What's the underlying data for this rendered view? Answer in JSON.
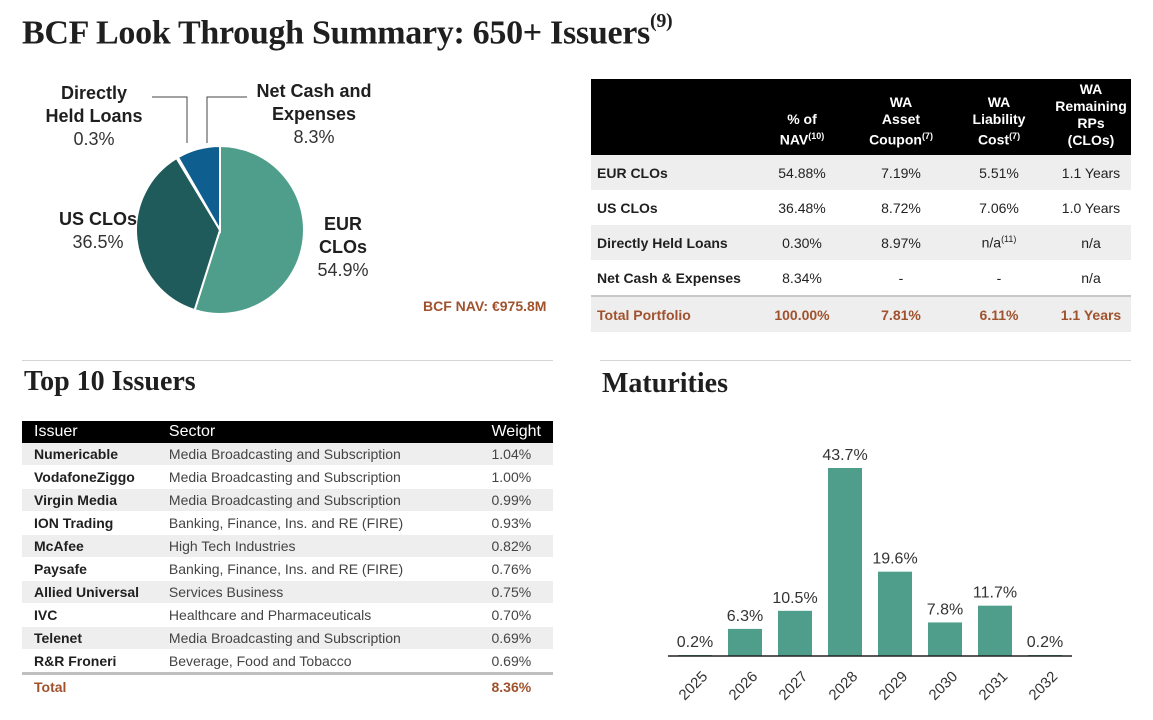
{
  "title": {
    "main": "BCF Look Through Summary: 650+ Issuers",
    "footnote": "(9)"
  },
  "nav_text": "BCF NAV: €975.8M",
  "pie": {
    "slices": [
      {
        "key": "eur",
        "name_line1": "EUR",
        "name_line2": "CLOs",
        "pct_label": "54.9%",
        "value": 54.88,
        "color": "#4f9e8b"
      },
      {
        "key": "us",
        "name_line1": "US CLOs",
        "name_line2": "",
        "pct_label": "36.5%",
        "value": 36.48,
        "color": "#1e5b5a"
      },
      {
        "key": "direct",
        "name_line1": "Directly",
        "name_line2": "Held Loans",
        "pct_label": "0.3%",
        "value": 0.3,
        "color": "#9fd0c4"
      },
      {
        "key": "cash",
        "name_line1": "Net Cash and",
        "name_line2": "Expenses",
        "pct_label": "8.3%",
        "value": 8.34,
        "color": "#0e5e8f"
      }
    ]
  },
  "summary_table": {
    "headers": [
      {
        "main": "",
        "sup": ""
      },
      {
        "main": "% of\nNAV",
        "sup": "(10)"
      },
      {
        "main": "WA\nAsset\nCoupon",
        "sup": "(7)"
      },
      {
        "main": "WA\nLiability\nCost",
        "sup": "(7)"
      },
      {
        "main": "WA\nRemaining\nRPs (CLOs)",
        "sup": ""
      }
    ],
    "rows": [
      {
        "cells": [
          "EUR CLOs",
          "54.88%",
          "7.19%",
          "5.51%",
          "1.1 Years"
        ],
        "sup": ""
      },
      {
        "cells": [
          "US CLOs",
          "36.48%",
          "8.72%",
          "7.06%",
          "1.0 Years"
        ],
        "sup": ""
      },
      {
        "cells": [
          "Directly Held Loans",
          "0.30%",
          "8.97%",
          "n/a",
          "n/a"
        ],
        "sup": "(11)"
      },
      {
        "cells": [
          "Net Cash & Expenses",
          "8.34%",
          "-",
          "-",
          "n/a"
        ],
        "sup": ""
      }
    ],
    "total": [
      "Total Portfolio",
      "100.00%",
      "7.81%",
      "6.11%",
      "1.1 Years"
    ]
  },
  "top10": {
    "title": "Top 10 Issuers",
    "headers": [
      "Issuer",
      "Sector",
      "Weight"
    ],
    "rows": [
      [
        "Numericable",
        "Media Broadcasting and Subscription",
        "1.04%"
      ],
      [
        "VodafoneZiggo",
        "Media Broadcasting and Subscription",
        "1.00%"
      ],
      [
        "Virgin Media",
        "Media Broadcasting and Subscription",
        "0.99%"
      ],
      [
        "ION Trading",
        "Banking, Finance, Ins. and RE (FIRE)",
        "0.93%"
      ],
      [
        "McAfee",
        "High Tech Industries",
        "0.82%"
      ],
      [
        "Paysafe",
        "Banking, Finance, Ins. and RE (FIRE)",
        "0.76%"
      ],
      [
        "Allied Universal",
        "Services Business",
        "0.75%"
      ],
      [
        "IVC",
        "Healthcare and Pharmaceuticals",
        "0.70%"
      ],
      [
        "Telenet",
        "Media Broadcasting and Subscription",
        "0.69%"
      ],
      [
        "R&R Froneri",
        "Beverage, Food and Tobacco",
        "0.69%"
      ]
    ],
    "total": [
      "Total",
      "",
      "8.36%"
    ]
  },
  "chart_data": {
    "type": "bar",
    "title": "Maturities",
    "categories": [
      "2025",
      "2026",
      "2027",
      "2028",
      "2029",
      "2030",
      "2031",
      "2032"
    ],
    "values": [
      0.2,
      6.3,
      10.5,
      43.7,
      19.6,
      7.8,
      11.7,
      0.2
    ],
    "data_labels": [
      "0.2%",
      "6.3%",
      "10.5%",
      "43.7%",
      "19.6%",
      "7.8%",
      "11.7%",
      "0.2%"
    ],
    "ylim": [
      0,
      43.7
    ],
    "xlabel": "",
    "ylabel": "",
    "grid": false,
    "bar_color": "#4f9e8b"
  }
}
